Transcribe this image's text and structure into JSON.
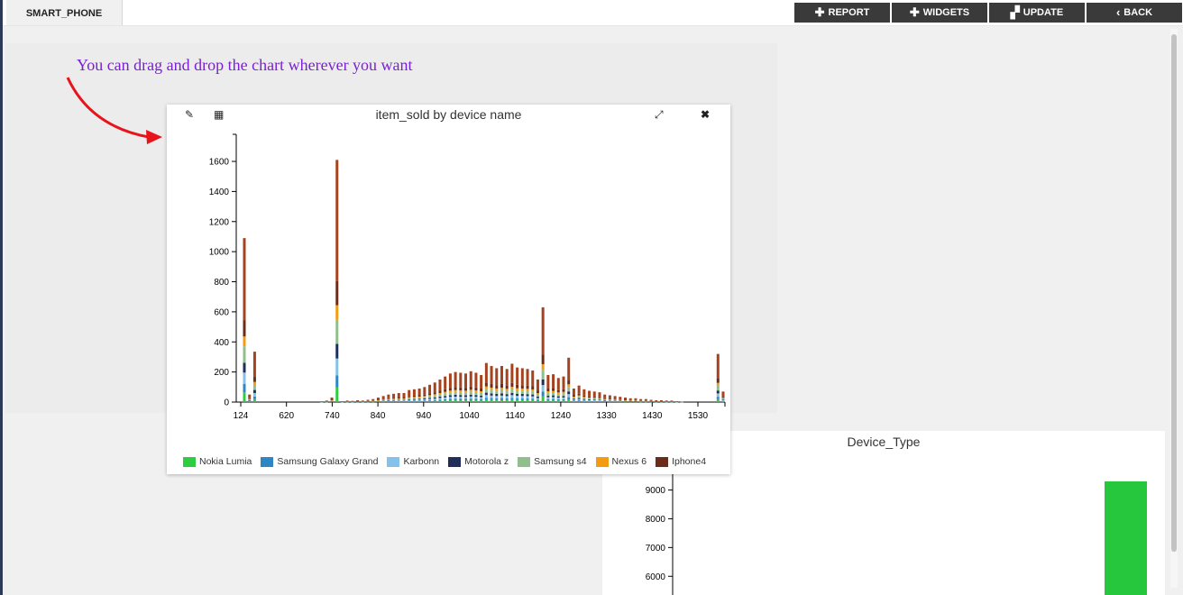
{
  "tabs": [
    {
      "label": "SMART_PHONE"
    }
  ],
  "toolbar": {
    "report_label": "REPORT",
    "widgets_label": "WIDGETS",
    "update_label": "UPDATE",
    "back_label": "BACK"
  },
  "hint": {
    "text": "You can drag and drop the chart wherever you want"
  },
  "widget1": {
    "title": "item_sold by device name",
    "legend": [
      {
        "name": "Nokia Lumia",
        "color": "#2ecc40"
      },
      {
        "name": "Samsung Galaxy Grand",
        "color": "#2f86c4"
      },
      {
        "name": "Karbonn",
        "color": "#84c2ea"
      },
      {
        "name": "Motorola z",
        "color": "#222e5a"
      },
      {
        "name": "Samsung s4",
        "color": "#8fbf8c"
      },
      {
        "name": "Nexus 6",
        "color": "#f39c12"
      },
      {
        "name": "Iphone4",
        "color": "#6b2d1a"
      }
    ]
  },
  "widget2": {
    "title": "Device_Type"
  },
  "chart_data": [
    {
      "type": "bar",
      "stacked": true,
      "title": "item_sold by device name",
      "xlabel": "",
      "ylabel": "",
      "x_ticks": [
        124,
        620,
        740,
        840,
        940,
        1040,
        1140,
        1240,
        1330,
        1430,
        1530
      ],
      "y_ticks": [
        0,
        200,
        400,
        600,
        800,
        1000,
        1200,
        1400,
        1600
      ],
      "ylim": [
        0,
        1780
      ],
      "series_names": [
        "Nokia Lumia",
        "Samsung Galaxy Grand",
        "Karbonn",
        "Motorola z",
        "Samsung s4",
        "Nexus 6",
        "Iphone4"
      ],
      "totals": [
        1090,
        50,
        335,
        0,
        0,
        0,
        0,
        0,
        0,
        0,
        0,
        0,
        0,
        0,
        0,
        5,
        10,
        30,
        1610,
        5,
        10,
        8,
        12,
        10,
        15,
        20,
        30,
        40,
        50,
        55,
        60,
        60,
        80,
        85,
        90,
        100,
        115,
        130,
        150,
        170,
        190,
        200,
        195,
        190,
        205,
        195,
        180,
        260,
        240,
        225,
        240,
        220,
        255,
        230,
        225,
        220,
        210,
        150,
        630,
        180,
        185,
        160,
        170,
        295,
        90,
        110,
        85,
        75,
        70,
        65,
        50,
        45,
        40,
        35,
        30,
        25,
        25,
        20,
        20,
        15,
        12,
        12,
        10,
        10,
        5,
        3,
        0,
        0,
        0,
        0,
        0,
        0,
        320,
        70
      ],
      "legend_position": "bottom"
    },
    {
      "type": "bar",
      "title": "Device_Type",
      "y_ticks": [
        6000,
        7000,
        8000,
        9000
      ],
      "values": [
        9300
      ],
      "ylim": [
        5350,
        9800
      ]
    }
  ]
}
